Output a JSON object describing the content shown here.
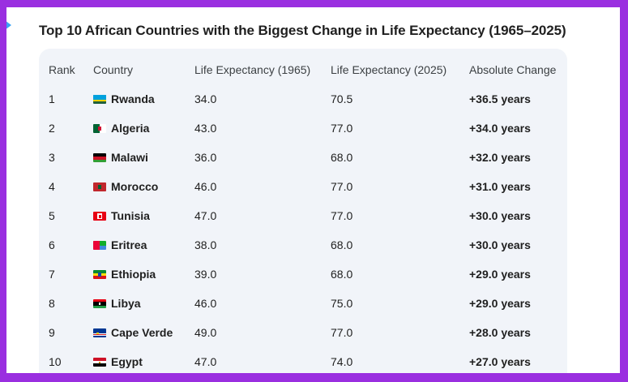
{
  "table": {
    "title": "Top 10 African Countries with the Biggest Change in Life Expectancy (1965–2025)",
    "headers": {
      "rank": "Rank",
      "country": "Country",
      "le1965": "Life Expectancy (1965)",
      "le2025": "Life Expectancy (2025)",
      "change": "Absolute Change"
    },
    "rows": [
      {
        "rank": "1",
        "flag": "rwanda-flag-icon",
        "country": "Rwanda",
        "le1965": "34.0",
        "le2025": "70.5",
        "change": "+36.5 years"
      },
      {
        "rank": "2",
        "flag": "algeria-flag-icon",
        "country": "Algeria",
        "le1965": "43.0",
        "le2025": "77.0",
        "change": "+34.0 years"
      },
      {
        "rank": "3",
        "flag": "malawi-flag-icon",
        "country": "Malawi",
        "le1965": "36.0",
        "le2025": "68.0",
        "change": "+32.0 years"
      },
      {
        "rank": "4",
        "flag": "morocco-flag-icon",
        "country": "Morocco",
        "le1965": "46.0",
        "le2025": "77.0",
        "change": "+31.0 years"
      },
      {
        "rank": "5",
        "flag": "tunisia-flag-icon",
        "country": "Tunisia",
        "le1965": "47.0",
        "le2025": "77.0",
        "change": "+30.0 years"
      },
      {
        "rank": "6",
        "flag": "eritrea-flag-icon",
        "country": "Eritrea",
        "le1965": "38.0",
        "le2025": "68.0",
        "change": "+30.0 years"
      },
      {
        "rank": "7",
        "flag": "ethiopia-flag-icon",
        "country": "Ethiopia",
        "le1965": "39.0",
        "le2025": "68.0",
        "change": "+29.0 years"
      },
      {
        "rank": "8",
        "flag": "libya-flag-icon",
        "country": "Libya",
        "le1965": "46.0",
        "le2025": "75.0",
        "change": "+29.0 years"
      },
      {
        "rank": "9",
        "flag": "cape-verde-flag-icon",
        "country": "Cape Verde",
        "le1965": "49.0",
        "le2025": "77.0",
        "change": "+28.0 years"
      },
      {
        "rank": "10",
        "flag": "egypt-flag-icon",
        "country": "Egypt",
        "le1965": "47.0",
        "le2025": "74.0",
        "change": "+27.0 years"
      }
    ]
  },
  "colors": {
    "border": "#9a2fe0",
    "card_background": "#f1f4f9",
    "text": "#1f1f1f"
  }
}
